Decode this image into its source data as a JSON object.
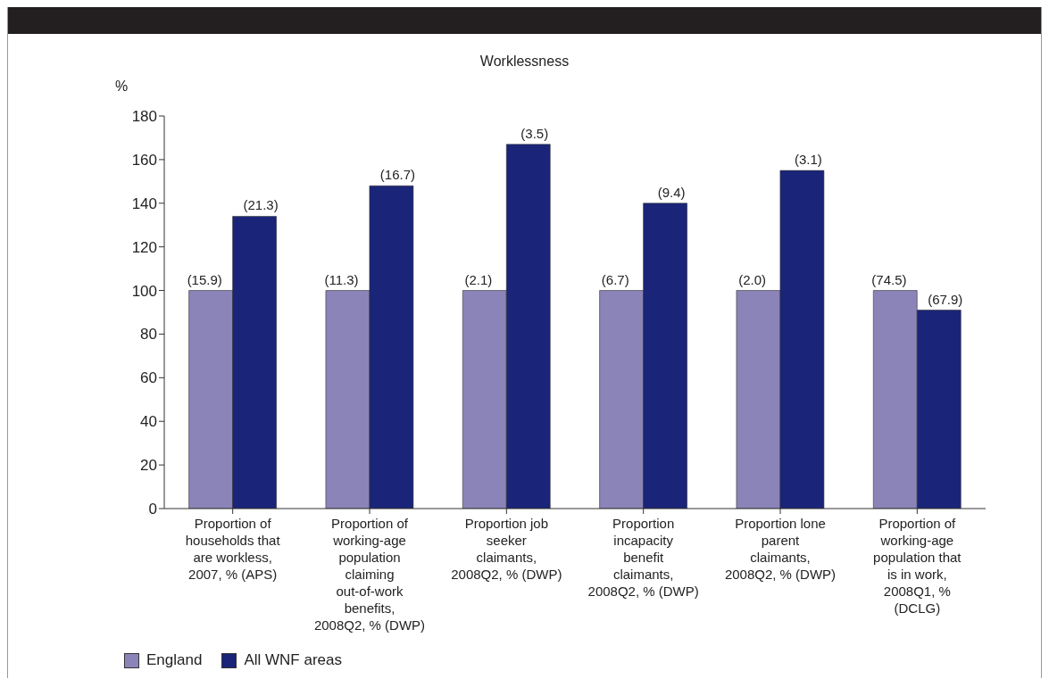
{
  "chart_data": {
    "type": "bar",
    "title": "Worklessness",
    "ylabel": "%",
    "categories": [
      "Proportion of households that are workless, 2007, % (APS)",
      "Proportion of working-age population claiming out-of-work benefits, 2008Q2, % (DWP)",
      "Proportion job seeker claimants, 2008Q2, % (DWP)",
      "Proportion incapacity benefit claimants, 2008Q2, % (DWP)",
      "Proportion lone parent claimants, 2008Q2, % (DWP)",
      "Proportion of working-age population that is in work, 2008Q1, % (DCLG)"
    ],
    "series": [
      {
        "name": "England",
        "color": "#8b84b9",
        "values": [
          100,
          100,
          100,
          100,
          100,
          100
        ]
      },
      {
        "name": "All WNF areas",
        "color": "#1a2478",
        "values": [
          134,
          148,
          167,
          140,
          155,
          91
        ]
      }
    ],
    "annotations": [
      {
        "text": "(15.9)",
        "x": "Proportion of households that are workless, 2007, % (APS)",
        "y": 100
      },
      {
        "text": "(21.3)",
        "x": "Proportion of households that are workless, 2007, % (APS)",
        "y": 134
      },
      {
        "text": "(11.3)",
        "x": "Proportion of working-age population claiming out-of-work benefits, 2008Q2, % (DWP)",
        "y": 100
      },
      {
        "text": "(16.7)",
        "x": "Proportion of working-age population claiming out-of-work benefits, 2008Q2, % (DWP)",
        "y": 148
      },
      {
        "text": "(2.1)",
        "x": "Proportion job seeker claimants, 2008Q2, % (DWP)",
        "y": 100
      },
      {
        "text": "(3.5)",
        "x": "Proportion job seeker claimants, 2008Q2, % (DWP)",
        "y": 167
      },
      {
        "text": "(6.7)",
        "x": "Proportion incapacity benefit claimants, 2008Q2, % (DWP)",
        "y": 100
      },
      {
        "text": "(9.4)",
        "x": "Proportion incapacity benefit claimants, 2008Q2, % (DWP)",
        "y": 140
      },
      {
        "text": "(2.0)",
        "x": "Proportion lone parent claimants, 2008Q2, % (DWP)",
        "y": 100
      },
      {
        "text": "(3.1)",
        "x": "Proportion lone parent claimants, 2008Q2, % (DWP)",
        "y": 155
      },
      {
        "text": "(74.5)",
        "x": "Proportion of working-age population that is in work, 2008Q1, % (DCLG)",
        "y": 100
      },
      {
        "text": "(67.9)",
        "x": "Proportion of working-age population that is in work, 2008Q1, % (DCLG)",
        "y": 91
      }
    ],
    "ylim": [
      0,
      180
    ],
    "yticks": [
      0,
      20,
      40,
      60,
      80,
      100,
      120,
      140,
      160,
      180
    ],
    "legend": "bottom left"
  }
}
